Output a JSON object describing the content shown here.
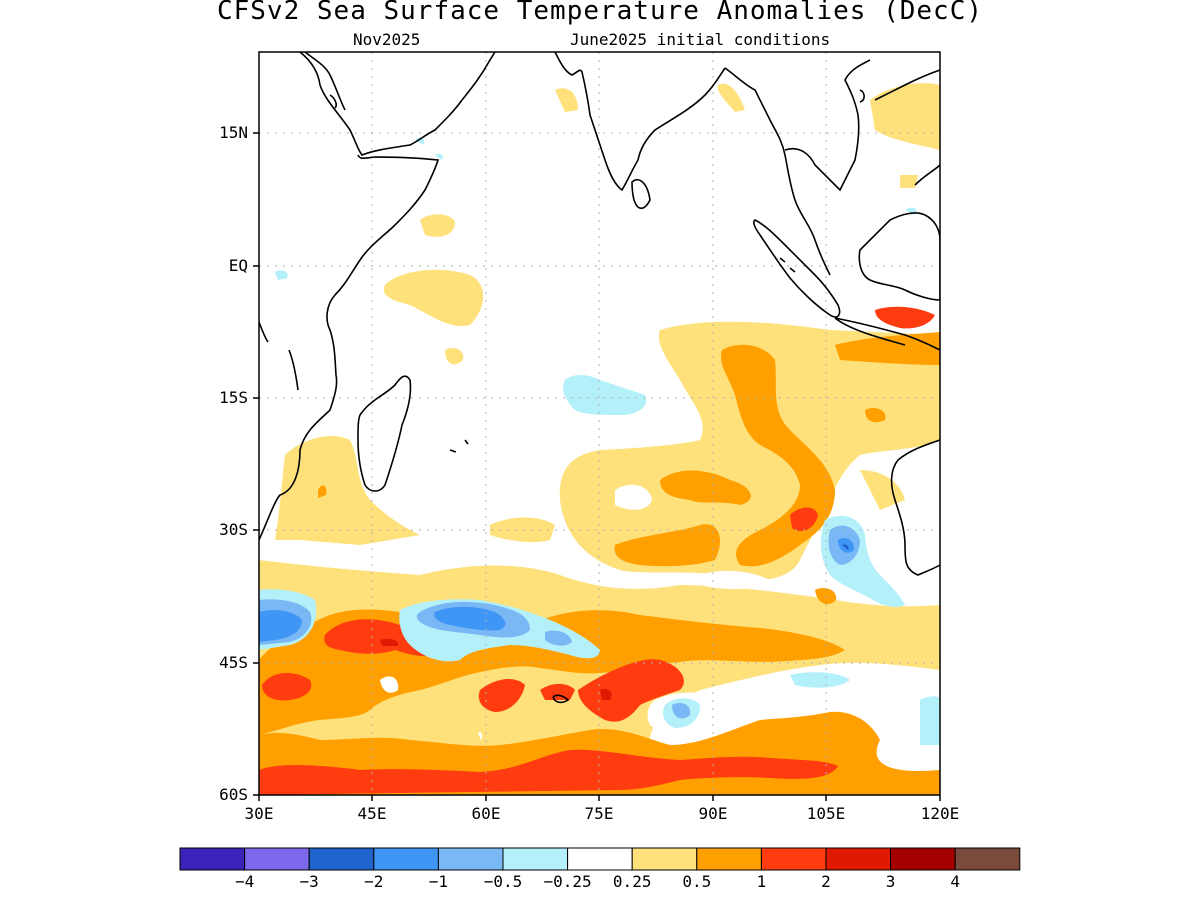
{
  "title": "CFSv2 Sea Surface Temperature Anomalies (DecC)",
  "subtitle_left": "Nov2025",
  "subtitle_right": "June2025 initial conditions",
  "lat_labels": [
    "15N",
    "EQ",
    "15S",
    "30S",
    "45S",
    "60S"
  ],
  "lon_labels": [
    "30E",
    "45E",
    "60E",
    "75E",
    "90E",
    "105E",
    "120E"
  ],
  "colorbar": {
    "colors": [
      "#3b22b8",
      "#7b68ea",
      "#1e64cc",
      "#3f96f5",
      "#7ab8f5",
      "#b4f0fa",
      "#ffffff",
      "#ffe17c",
      "#ffa000",
      "#ff3c10",
      "#e01a00",
      "#a50000",
      "#7a4b3c"
    ],
    "labels": [
      "−4",
      "−3",
      "−2",
      "−1",
      "−0.5",
      "−0.25",
      "0.25",
      "0.5",
      "1",
      "2",
      "3",
      "4"
    ]
  },
  "chart_data": {
    "type": "heatmap",
    "title": "CFSv2 Sea Surface Temperature Anomalies (DecC)",
    "subtitle": [
      "Nov2025",
      "June2025 initial conditions"
    ],
    "x_range": [
      30,
      120
    ],
    "y_range": [
      -60,
      24
    ],
    "x_ticks": [
      "30E",
      "45E",
      "60E",
      "75E",
      "90E",
      "105E",
      "120E"
    ],
    "y_ticks": [
      "15N",
      "EQ",
      "15S",
      "30S",
      "45S",
      "60S"
    ],
    "grid": true,
    "units": "DecC",
    "levels": [
      -4,
      -3,
      -2,
      -1,
      -0.5,
      -0.25,
      0.25,
      0.5,
      1,
      2,
      3,
      4
    ]
  }
}
